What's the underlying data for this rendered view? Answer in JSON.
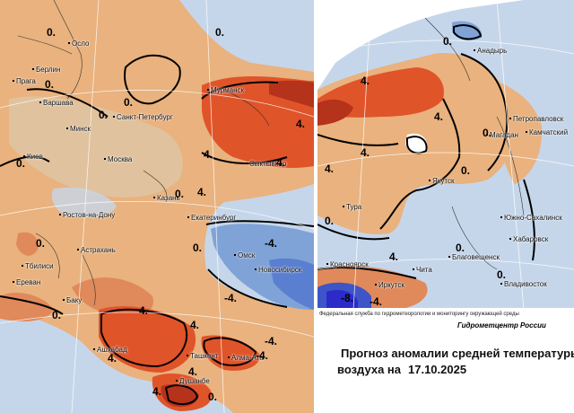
{
  "colors": {
    "warm_light": "#e9b27e",
    "warm_mid": "#e0895a",
    "warm_strong": "#e0542a",
    "warm_deep": "#b5321b",
    "cold_light": "#c6d6ea",
    "cold_mid": "#7fa3d6",
    "cold_strong": "#3d55c7",
    "cold_deep": "#2c2ac9",
    "neutral": "#dcc9ad"
  },
  "west_map": {
    "cities": [
      "Осло",
      "Берлин",
      "Прага",
      "Варшава",
      "Санкт-Петербург",
      "Мурманск",
      "Минск",
      "Киев",
      "Москва",
      "Сыктывкар",
      "Казань",
      "Ростов-на-Дону",
      "Екатеринбург",
      "Астрахань",
      "Омск",
      "Новосибирск",
      "Тбилиси",
      "Ереван",
      "Баку",
      "Ашхабад",
      "Ташкент",
      "Алма-Ата",
      "Душанбе"
    ],
    "isolines": [
      "0.",
      "0.",
      "0.",
      "0.",
      "0.",
      "0.",
      "0.",
      "4.",
      "4.",
      "4.",
      "4.",
      "-4.",
      "-4.",
      "-4.",
      "0.",
      "4.",
      "4.",
      "4.",
      "4.",
      "4.",
      "0.",
      "-4.",
      "0.",
      "0."
    ]
  },
  "east_map": {
    "cities": [
      "Анадырь",
      "Петропавловск",
      "Камчатский",
      "Магадан",
      "Якутск",
      "Тура",
      "Южно-Сахалинск",
      "Хабаровск",
      "Благовещенск",
      "Красноярск",
      "Чита",
      "Иркутск",
      "Владивосток"
    ],
    "isolines": [
      "0.",
      "4.",
      "4.",
      "4.",
      "0.",
      "0.",
      "4.",
      "0.",
      "0.",
      "4.",
      "0.",
      "-4.",
      "-8."
    ]
  },
  "info": {
    "agency": "Федеральная служба по гидрометеорологии и мониторингу окружающей среды",
    "center": "Гидрометцентр России",
    "title_line1": "Прогноз аномалии средней температуры",
    "title_line2": "воздуха на",
    "date": "17.10.2025"
  }
}
